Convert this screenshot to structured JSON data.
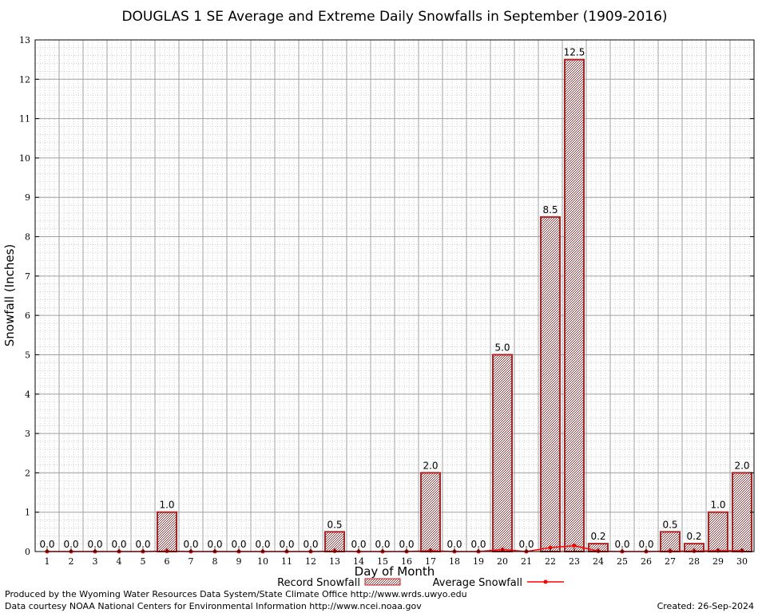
{
  "chart_data": {
    "type": "bar",
    "title": "DOUGLAS 1 SE Average and Extreme Daily Snowfalls in September (1909-2016)",
    "xlabel": "Day of Month",
    "ylabel": "Snowfall (Inches)",
    "ylim": [
      0,
      13
    ],
    "yticks": [
      "0",
      "1",
      "2",
      "3",
      "4",
      "5",
      "6",
      "7",
      "8",
      "9",
      "10",
      "11",
      "12",
      "13"
    ],
    "grid": true,
    "legend_position": "bottom",
    "categories": [
      "1",
      "2",
      "3",
      "4",
      "5",
      "6",
      "7",
      "8",
      "9",
      "10",
      "11",
      "12",
      "13",
      "14",
      "15",
      "16",
      "17",
      "18",
      "19",
      "20",
      "21",
      "22",
      "23",
      "24",
      "25",
      "26",
      "27",
      "28",
      "29",
      "30"
    ],
    "series": [
      {
        "name": "Record Snowfall",
        "kind": "bar",
        "color": "#b22222",
        "values": [
          0,
          0,
          0,
          0,
          0,
          1.0,
          0,
          0,
          0,
          0,
          0,
          0,
          0.5,
          0,
          0,
          0,
          2.0,
          0,
          0,
          5.0,
          0,
          8.5,
          12.5,
          0.2,
          0,
          0,
          0.5,
          0.2,
          1.0,
          2.0
        ],
        "labels": [
          "0.0",
          "0.0",
          "0.0",
          "0.0",
          "0.0",
          "1.0",
          "0.0",
          "0.0",
          "0.0",
          "0.0",
          "0.0",
          "0.0",
          "0.5",
          "0.0",
          "0.0",
          "0.0",
          "2.0",
          "0.0",
          "0.0",
          "5.0",
          "0.0",
          "8.5",
          "12.5",
          "0.2",
          "0.0",
          "0.0",
          "0.5",
          "0.2",
          "1.0",
          "2.0"
        ]
      },
      {
        "name": "Average Snowfall",
        "kind": "line",
        "color": "#ff0000",
        "values": [
          0,
          0,
          0,
          0,
          0,
          0.01,
          0,
          0,
          0,
          0,
          0,
          0,
          0.01,
          0,
          0,
          0,
          0.02,
          0,
          0,
          0.05,
          0,
          0.1,
          0.15,
          0.01,
          0,
          0,
          0.01,
          0.01,
          0.02,
          0.02
        ]
      }
    ]
  },
  "footer": {
    "producer": "Produced by the Wyoming Water Resources Data System/State Climate Office http://www.wrds.uwyo.edu",
    "source": "Data courtesy NOAA National Centers for Environmental Information http://www.ncei.noaa.gov",
    "created": "Created:  26-Sep-2024"
  }
}
